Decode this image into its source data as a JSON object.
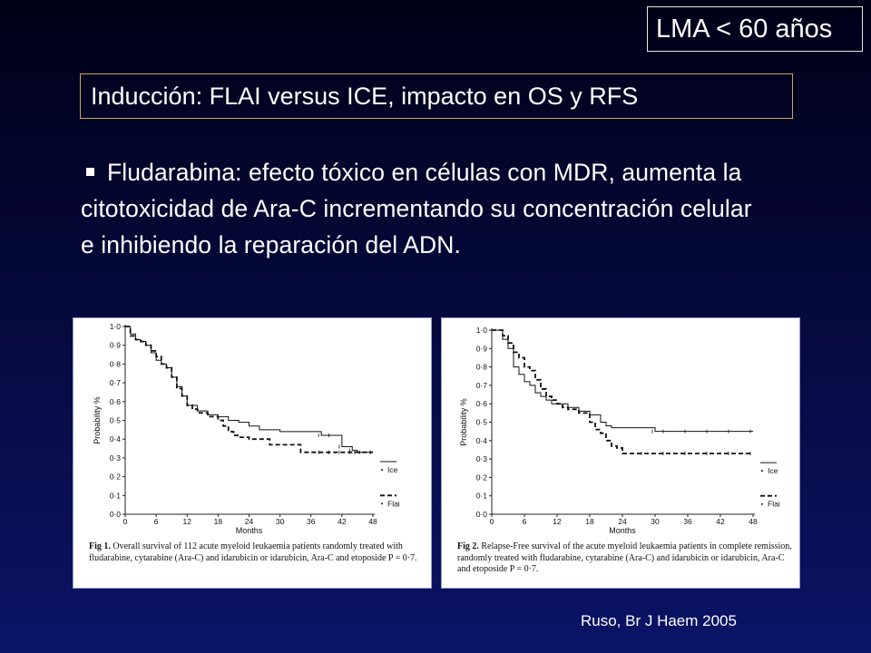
{
  "tag": "LMA < 60 años",
  "title": "Inducción: FLAI versus ICE, impacto en OS y RFS",
  "bullet": "Fludarabina: efecto tóxico en células con MDR, aumenta la citotoxicidad de Ara-C incrementando su concentración celular e inhibiendo la reparación del ADN.",
  "citation": "Ruso, Br J Haem 2005",
  "chart_data": [
    {
      "type": "line",
      "xlabel": "Months",
      "ylabel": "Probability %",
      "xlim": [
        0,
        48
      ],
      "ylim": [
        0,
        1
      ],
      "xticks": [
        "0",
        "6",
        "12",
        "18",
        "24",
        "30",
        "36",
        "42",
        "48"
      ],
      "yticks": [
        "0·0",
        "0·1",
        "0·2",
        "0·3",
        "0·4",
        "0·5",
        "0·6",
        "0·7",
        "0·8",
        "0·9",
        "1·0"
      ],
      "legend": [
        "Ice",
        "Flai"
      ],
      "caption_bold": "Fig 1.",
      "caption": "Overall survival of 112 acute myeloid leukaemia patients randomly treated with fludarabine, cytarabine (Ara-C) and idarubicin or idarubicin, Ara-C and etoposide P = 0·7.",
      "series": [
        {
          "name": "Ice",
          "style": "solid",
          "x": [
            0,
            1,
            2,
            3,
            4,
            5,
            6,
            7,
            8,
            9,
            10,
            11,
            12,
            14,
            16,
            18,
            20,
            22,
            24,
            26,
            28,
            30,
            32,
            34,
            36,
            38,
            40,
            42,
            44,
            45,
            48
          ],
          "y": [
            1.0,
            0.96,
            0.93,
            0.92,
            0.9,
            0.86,
            0.82,
            0.8,
            0.78,
            0.73,
            0.68,
            0.63,
            0.58,
            0.55,
            0.53,
            0.52,
            0.5,
            0.49,
            0.47,
            0.45,
            0.45,
            0.44,
            0.44,
            0.44,
            0.44,
            0.42,
            0.42,
            0.36,
            0.34,
            0.33,
            0.33
          ]
        },
        {
          "name": "Flai",
          "style": "dashed",
          "x": [
            0,
            1,
            2,
            3,
            4,
            5,
            6,
            7,
            8,
            9,
            10,
            11,
            12,
            13,
            14,
            16,
            18,
            19,
            20,
            21,
            22,
            24,
            26,
            28,
            30,
            32,
            34,
            36,
            38,
            40,
            42,
            44,
            46,
            48
          ],
          "y": [
            1.0,
            0.95,
            0.93,
            0.92,
            0.9,
            0.87,
            0.84,
            0.8,
            0.78,
            0.73,
            0.67,
            0.63,
            0.58,
            0.56,
            0.54,
            0.52,
            0.5,
            0.47,
            0.44,
            0.42,
            0.41,
            0.4,
            0.4,
            0.37,
            0.37,
            0.37,
            0.33,
            0.33,
            0.33,
            0.33,
            0.33,
            0.33,
            0.33,
            0.33
          ]
        }
      ]
    },
    {
      "type": "line",
      "xlabel": "Months",
      "ylabel": "Probability %",
      "xlim": [
        0,
        48
      ],
      "ylim": [
        0,
        1
      ],
      "xticks": [
        "0",
        "6",
        "12",
        "18",
        "24",
        "30",
        "36",
        "42",
        "48"
      ],
      "yticks": [
        "0·0",
        "0·1",
        "0·2",
        "0·3",
        "0·4",
        "0·5",
        "0·6",
        "0·7",
        "0·8",
        "0·9",
        "1·0"
      ],
      "legend": [
        "Ice",
        "Flai"
      ],
      "caption_bold": "Fig 2.",
      "caption": "Relapse-Free survival of the acute myeloid leukaemia patients in complete remission, randomly treated with fludarabine, cytarabine (Ara-C) and idarubicin or idarubicin, Ara-C and etoposide P = 0·7.",
      "series": [
        {
          "name": "Ice",
          "style": "solid",
          "x": [
            0,
            2,
            3,
            4,
            5,
            6,
            7,
            8,
            9,
            10,
            11,
            12,
            14,
            16,
            18,
            20,
            21,
            22,
            24,
            26,
            28,
            30,
            32,
            36,
            40,
            44,
            48
          ],
          "y": [
            1.0,
            0.95,
            0.9,
            0.8,
            0.76,
            0.72,
            0.7,
            0.66,
            0.64,
            0.62,
            0.6,
            0.6,
            0.58,
            0.56,
            0.54,
            0.5,
            0.48,
            0.47,
            0.47,
            0.47,
            0.47,
            0.45,
            0.45,
            0.45,
            0.45,
            0.45,
            0.45
          ]
        },
        {
          "name": "Flai",
          "style": "dashed",
          "x": [
            0,
            2,
            3,
            4,
            5,
            6,
            7,
            8,
            9,
            10,
            11,
            12,
            13,
            14,
            16,
            18,
            19,
            20,
            21,
            22,
            23,
            24,
            26,
            28,
            32,
            36,
            40,
            44,
            48
          ],
          "y": [
            1.0,
            0.97,
            0.93,
            0.88,
            0.85,
            0.8,
            0.78,
            0.73,
            0.68,
            0.64,
            0.62,
            0.6,
            0.58,
            0.57,
            0.55,
            0.5,
            0.46,
            0.44,
            0.4,
            0.37,
            0.36,
            0.33,
            0.33,
            0.33,
            0.33,
            0.33,
            0.33,
            0.33,
            0.33
          ]
        }
      ]
    }
  ]
}
